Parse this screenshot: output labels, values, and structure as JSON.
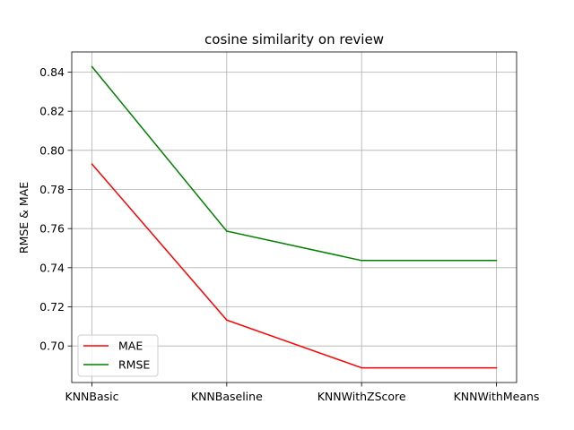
{
  "chart_data": {
    "type": "line",
    "title": "cosine similarity on review",
    "xlabel": "",
    "ylabel": "RMSE & MAE",
    "categories": [
      "KNNBasic",
      "KNNBaseline",
      "KNNWithZScore",
      "KNNWithMeans"
    ],
    "series": [
      {
        "name": "MAE",
        "color": "#ff0000",
        "values": [
          0.793,
          0.7132,
          0.6888,
          0.6888
        ]
      },
      {
        "name": "RMSE",
        "color": "#008000",
        "values": [
          0.8428,
          0.7587,
          0.7437,
          0.7437
        ]
      }
    ],
    "ylim": [
      0.6813,
      0.8503
    ],
    "yticks": [
      0.7,
      0.72,
      0.74,
      0.76,
      0.78,
      0.8,
      0.82,
      0.84
    ],
    "ytick_labels": [
      "0.70",
      "0.72",
      "0.74",
      "0.76",
      "0.78",
      "0.80",
      "0.82",
      "0.84"
    ],
    "grid": true,
    "legend_position": "lower-left"
  }
}
